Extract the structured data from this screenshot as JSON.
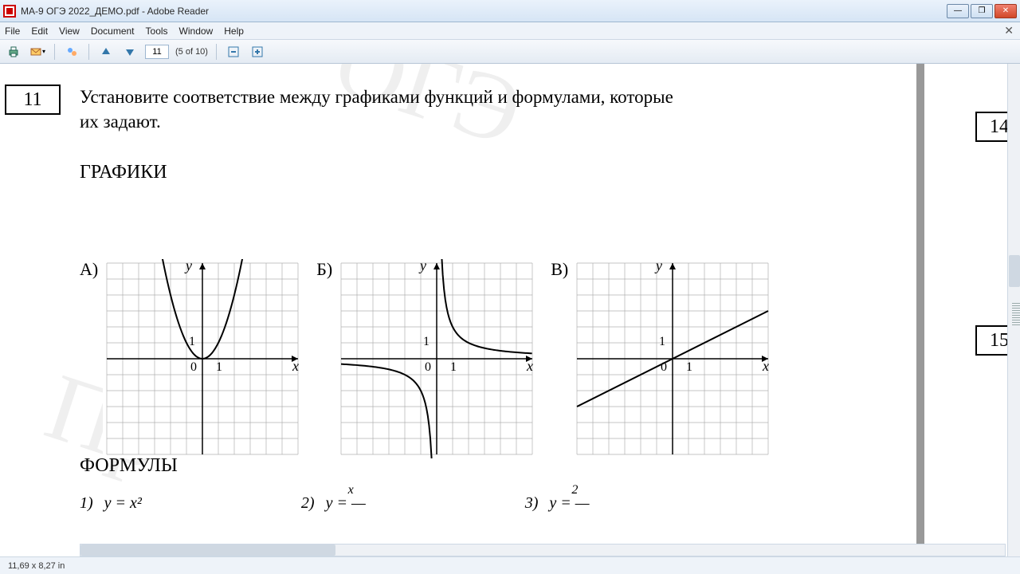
{
  "window": {
    "title": "МА-9 ОГЭ 2022_ДЕМО.pdf - Adobe Reader"
  },
  "menu": {
    "file": "File",
    "edit": "Edit",
    "view": "View",
    "document": "Document",
    "tools": "Tools",
    "window": "Window",
    "help": "Help"
  },
  "toolbar": {
    "page": "11",
    "page_of": "(5 of 10)"
  },
  "question": {
    "number": "11",
    "text_line1": "Установите соответствие между графиками функций и формулами, которые",
    "text_line2": "их задают.",
    "graphs_heading": "ГРАФИКИ",
    "formulas_heading": "ФОРМУЛЫ",
    "labels": {
      "a": "А)",
      "b": "Б)",
      "c": "В)"
    },
    "axis": {
      "x": "x",
      "y": "y",
      "zero": "0",
      "one": "1"
    }
  },
  "next_numbers": {
    "q14": "14",
    "q15": "15"
  },
  "formulas": {
    "f1n": "1)",
    "f1": "y = x²",
    "f2n": "2)",
    "f2": "y = —",
    "f2top": "x",
    "f3n": "3)",
    "f3": "y = —",
    "f3top": "2"
  },
  "grid": {
    "size": 240,
    "cells": 12,
    "cell": 20,
    "stroke": "#000000",
    "gridstroke": "#b0b0b0",
    "curve_stroke": "#000000"
  },
  "status": {
    "dims": "11,69 x 8,27 in"
  },
  "watermark": {
    "text1": "ОГЭ",
    "text2": "Пр"
  }
}
